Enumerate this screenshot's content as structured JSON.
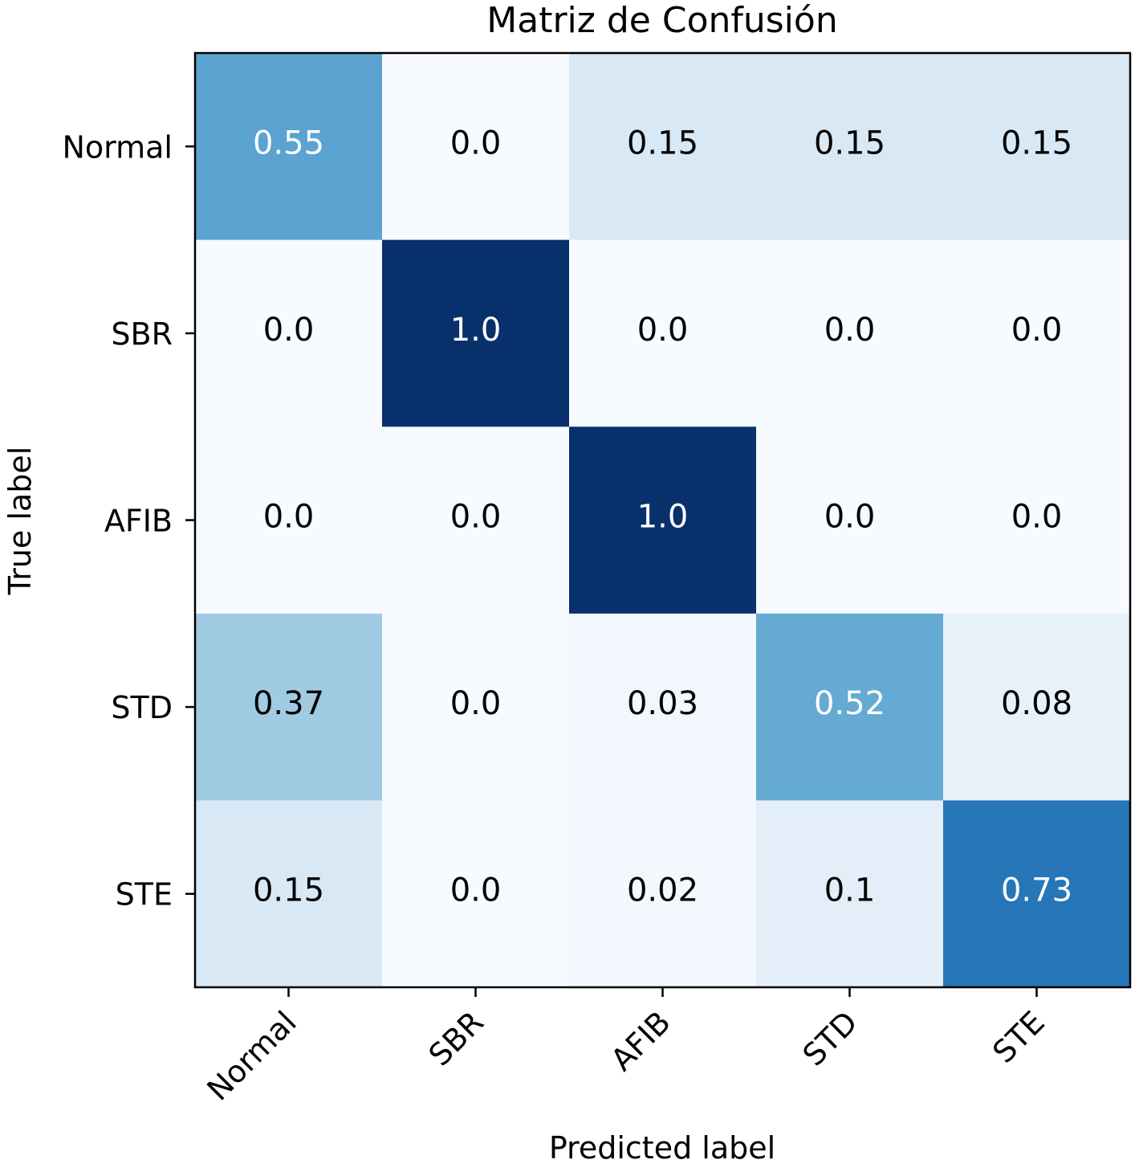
{
  "chart_data": {
    "type": "heatmap",
    "title": "Matriz de Confusión",
    "xlabel": "Predicted label",
    "ylabel": "True label",
    "x_categories": [
      "Normal",
      "SBR",
      "AFIB",
      "STD",
      "STE"
    ],
    "y_categories": [
      "Normal",
      "SBR",
      "AFIB",
      "STD",
      "STE"
    ],
    "values": [
      [
        0.55,
        0.0,
        0.15,
        0.15,
        0.15
      ],
      [
        0.0,
        1.0,
        0.0,
        0.0,
        0.0
      ],
      [
        0.0,
        0.0,
        1.0,
        0.0,
        0.0
      ],
      [
        0.37,
        0.0,
        0.03,
        0.52,
        0.08
      ],
      [
        0.15,
        0.0,
        0.02,
        0.1,
        0.73
      ]
    ],
    "value_labels": [
      [
        "0.55",
        "0.0",
        "0.15",
        "0.15",
        "0.15"
      ],
      [
        "0.0",
        "1.0",
        "0.0",
        "0.0",
        "0.0"
      ],
      [
        "0.0",
        "0.0",
        "1.0",
        "0.0",
        "0.0"
      ],
      [
        "0.37",
        "0.0",
        "0.03",
        "0.52",
        "0.08"
      ],
      [
        "0.15",
        "0.0",
        "0.02",
        "0.1",
        "0.73"
      ]
    ],
    "value_range": [
      0,
      1
    ],
    "colormap": "Blues",
    "x_tick_rotation_deg": 45
  }
}
